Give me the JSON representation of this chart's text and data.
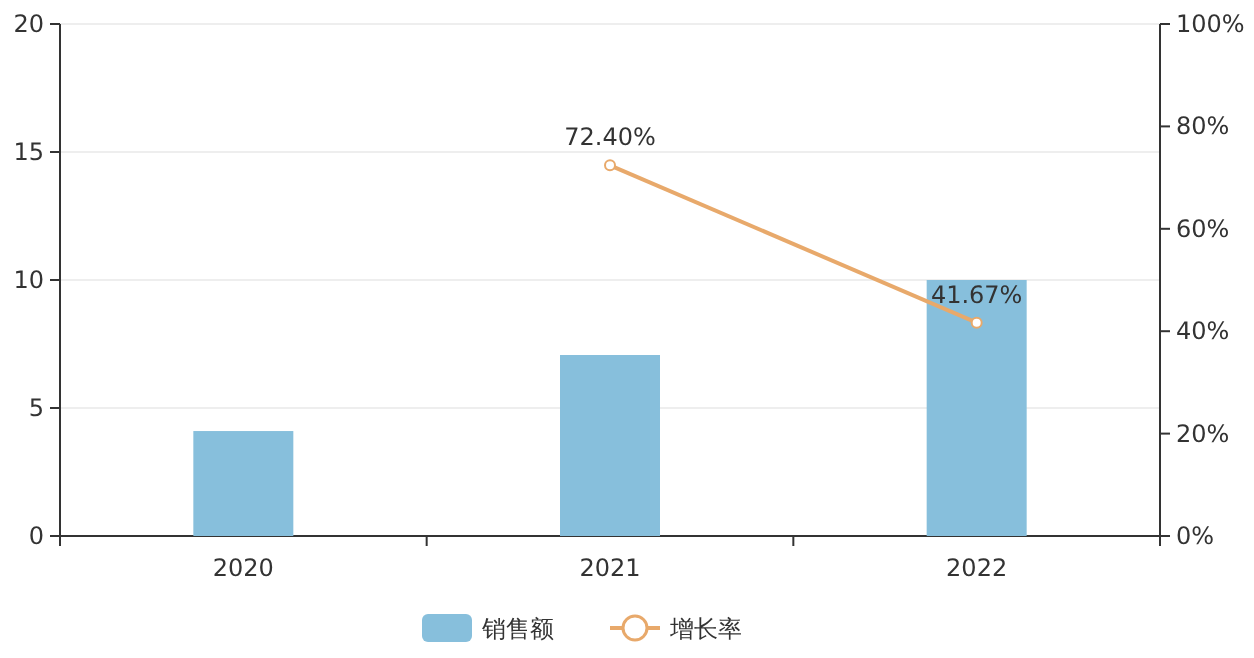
{
  "chart_data": {
    "type": "bar",
    "categories": [
      "2020",
      "2021",
      "2022"
    ],
    "series": [
      {
        "name": "销售额",
        "color": "#87bfdc",
        "values": [
          4.1,
          7.07,
          10.0
        ]
      },
      {
        "name": "增长率",
        "type": "line",
        "axis": "y2",
        "color": "#e8a96b",
        "marker": "circle",
        "values": [
          null,
          72.4,
          41.67
        ],
        "value_labels": [
          null,
          "72.40%",
          "41.67%"
        ]
      }
    ],
    "ylim": [
      0,
      20
    ],
    "yticks": [
      0,
      5,
      10,
      15,
      20
    ],
    "y2lim": [
      0,
      100
    ],
    "y2ticks": [
      {
        "value": 0,
        "label": "0%"
      },
      {
        "value": 20,
        "label": "20%"
      },
      {
        "value": 40,
        "label": "40%"
      },
      {
        "value": 60,
        "label": "60%"
      },
      {
        "value": 80,
        "label": "80%"
      },
      {
        "value": 100,
        "label": "100%"
      }
    ],
    "grid": "y",
    "legend": "bottom"
  }
}
